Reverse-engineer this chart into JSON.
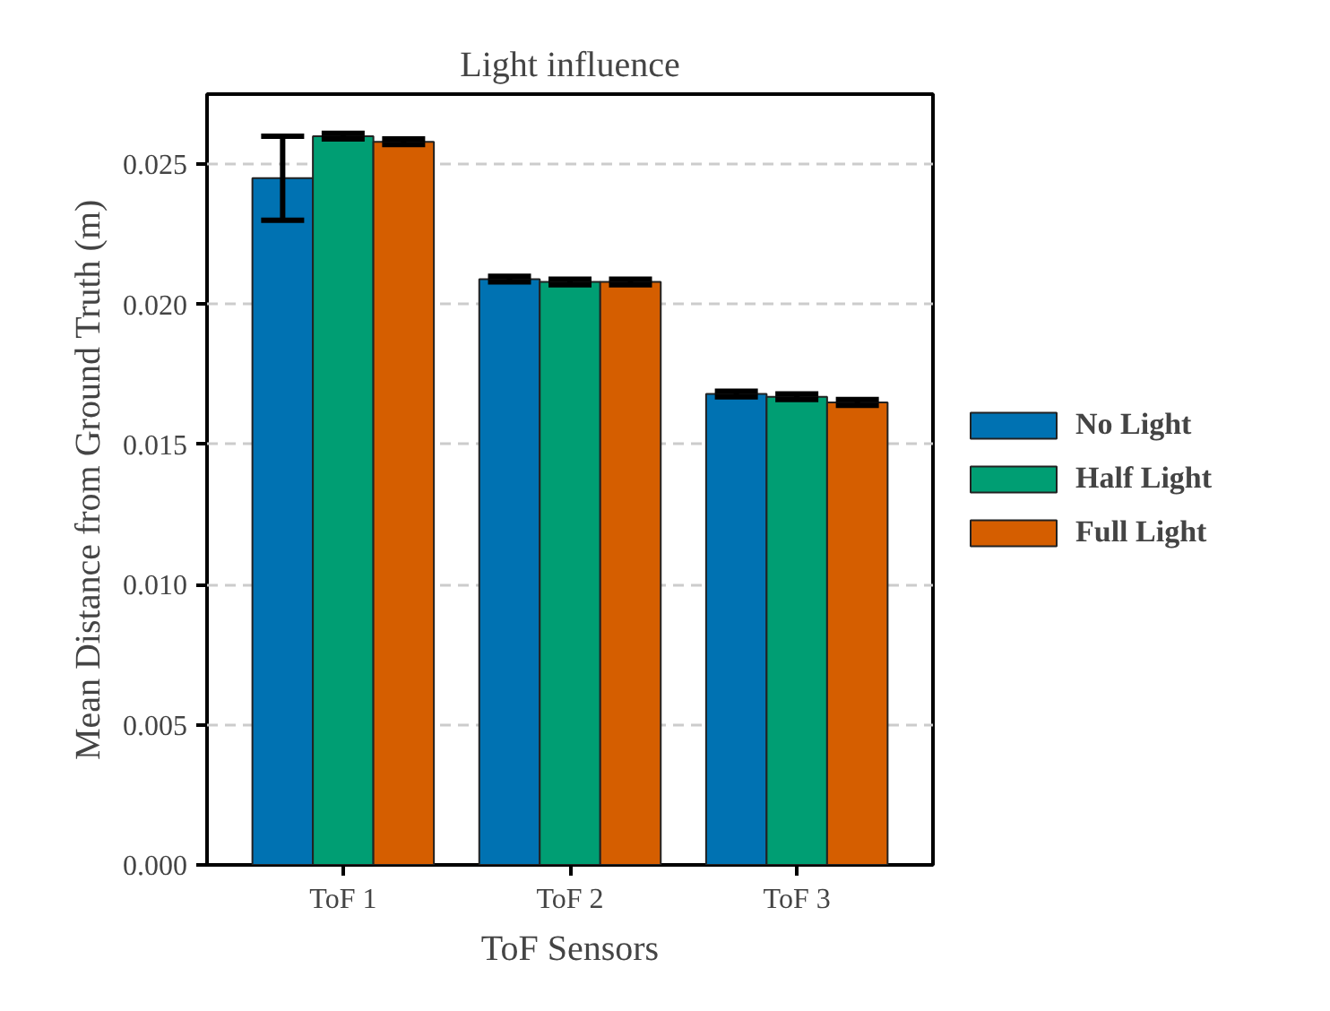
{
  "chart_data": {
    "type": "bar",
    "title": "Light influence",
    "xlabel": "ToF Sensors",
    "ylabel": "Mean Distance from Ground Truth (m)",
    "categories": [
      "ToF 1",
      "ToF 2",
      "ToF 3"
    ],
    "series": [
      {
        "name": "No Light",
        "color": "#0072b2",
        "values": [
          0.0245,
          0.0209,
          0.0168
        ],
        "errors": [
          0.0015,
          0.0001,
          0.0001
        ]
      },
      {
        "name": "Half Light",
        "color": "#009e73",
        "values": [
          0.026,
          0.0208,
          0.0167
        ],
        "errors": [
          0.0001,
          0.0001,
          0.0001
        ]
      },
      {
        "name": "Full Light",
        "color": "#d55e00",
        "values": [
          0.0258,
          0.0208,
          0.0165
        ],
        "errors": [
          0.0001,
          0.0001,
          0.0001
        ]
      }
    ],
    "ylim": [
      0,
      0.0275
    ],
    "yticks": [
      {
        "value": 0,
        "label": "0.000"
      },
      {
        "value": 0.005,
        "label": "0.005"
      },
      {
        "value": 0.01,
        "label": "0.010"
      },
      {
        "value": 0.015,
        "label": "0.015"
      },
      {
        "value": 0.02,
        "label": "0.020"
      },
      {
        "value": 0.025,
        "label": "0.025"
      }
    ],
    "grid": "y",
    "legend": "right"
  }
}
